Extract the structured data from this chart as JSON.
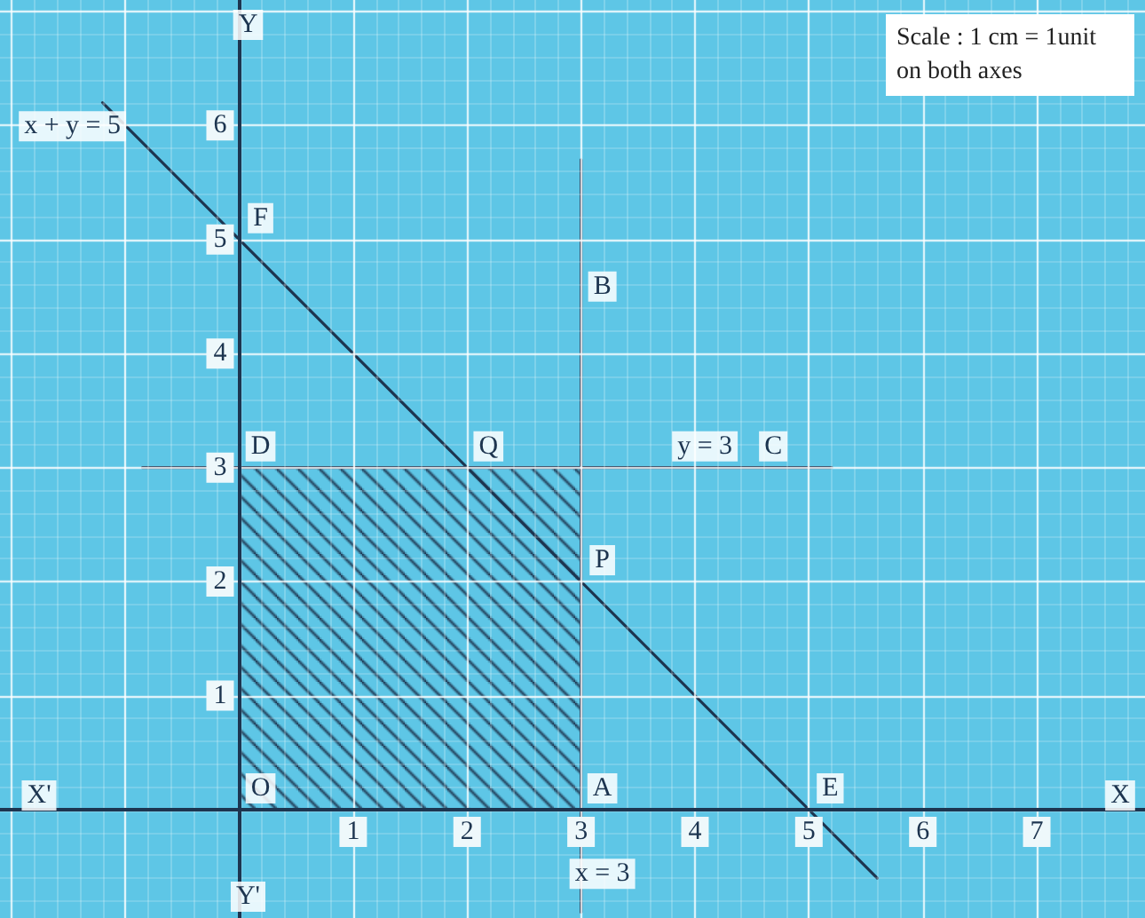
{
  "chart_data": {
    "type": "line",
    "xlabel": "X",
    "ylabel": "Y",
    "xlim": [
      -2.1,
      7.95
    ],
    "ylim": [
      -0.95,
      7.1
    ],
    "xticks": [
      {
        "value": -2,
        "label": null
      },
      {
        "value": -1,
        "label": null
      },
      {
        "value": 0,
        "label": null
      },
      1,
      2,
      3,
      4,
      5,
      6,
      7
    ],
    "yticks": [
      {
        "value": 0,
        "label": null
      },
      1,
      2,
      3,
      4,
      5,
      6,
      {
        "value": 7,
        "label": null
      }
    ],
    "grid": true,
    "marker": "none",
    "line_style": "solid",
    "series": [
      {
        "type": "area",
        "color": "#1d3550",
        "x": [
          0,
          3
        ],
        "values": [
          3,
          3
        ]
      },
      {
        "color": "#1d3550",
        "x": [
          -1.2,
          5.6
        ],
        "values": [
          6.2,
          -0.6
        ]
      },
      {
        "color": "#1d3550",
        "x": [
          -0.85,
          5.2
        ],
        "values": [
          3,
          3
        ]
      },
      {
        "color": "#1d3550",
        "x": [
          3,
          3
        ],
        "values": [
          -0.9,
          5.7
        ]
      }
    ],
    "annotations": [
      "Scale : 1 cm = 1unit on both axes",
      "X'",
      "Y'",
      {
        "text": "F",
        "x": 0,
        "y": 5
      },
      {
        "text": "D",
        "x": 0,
        "y": 3
      },
      {
        "text": "Q",
        "x": 2,
        "y": 3
      },
      {
        "text": "C",
        "x": 4.5,
        "y": 3
      },
      {
        "text": "B",
        "x": 3,
        "y": 4.4
      },
      {
        "text": "P",
        "x": 3,
        "y": 2
      },
      {
        "text": "A",
        "x": 3,
        "y": 0
      },
      {
        "text": "E",
        "x": 5,
        "y": 0
      },
      {
        "text": "O",
        "x": 0,
        "y": 0
      },
      {
        "text": "x + y = 5",
        "x": -0.9,
        "y": 5.9
      },
      {
        "text": "y = 3",
        "x": 3.9,
        "y": 3
      },
      {
        "text": "x = 3",
        "x": 3,
        "y": -0.75
      }
    ]
  }
}
